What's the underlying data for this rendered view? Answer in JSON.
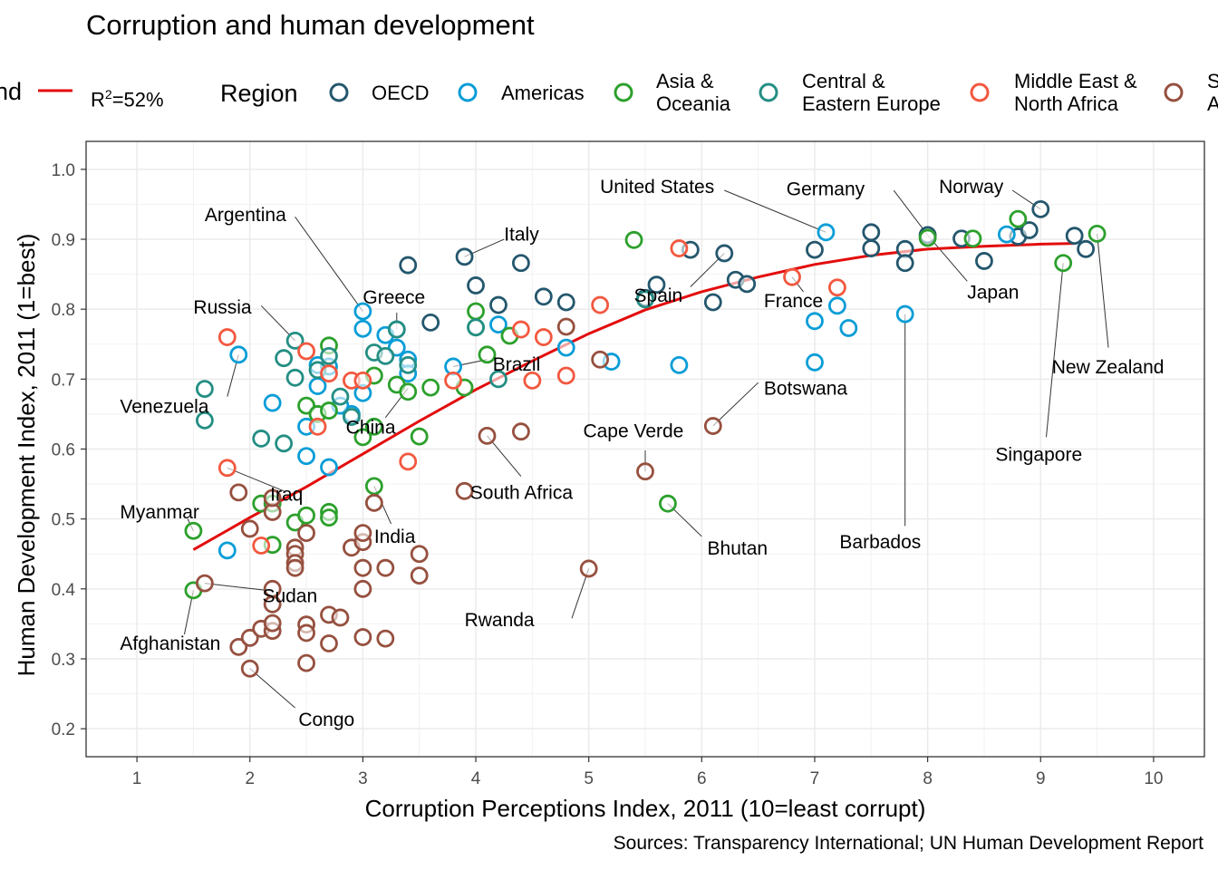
{
  "chart_data": {
    "type": "scatter",
    "title": "Corruption and human development",
    "xlabel": "Corruption Perceptions Index, 2011 (10=least corrupt)",
    "ylabel": "Human Development Index, 2011 (1=best)",
    "caption": "Sources: Transparency International; UN Human Development Report",
    "xlim": [
      0.55,
      10.45
    ],
    "ylim": [
      0.16,
      1.04
    ],
    "xticks": [
      "1",
      "2",
      "3",
      "4",
      "5",
      "6",
      "7",
      "8",
      "9",
      "10"
    ],
    "yticks": [
      "0.2",
      "0.3",
      "0.4",
      "0.5",
      "0.6",
      "0.7",
      "0.8",
      "0.9",
      "1.0"
    ],
    "grid": true,
    "legend_position": "top",
    "legend": {
      "fit_title": "nd",
      "fit_label": "R",
      "fit_sup": "2",
      "fit_suffix": "=52%",
      "region_title": "Region"
    },
    "regions": [
      {
        "key": "oecd",
        "line1": "OECD",
        "line2": "",
        "color": "#24576D"
      },
      {
        "key": "americas",
        "line1": "Americas",
        "line2": "",
        "color": "#099DD7"
      },
      {
        "key": "asia",
        "line1": "Asia &",
        "line2": "Oceania",
        "color": "#28AADC"
      },
      {
        "key": "cee",
        "line1": "Central &",
        "line2": "Eastern Europe",
        "color": "#248E84"
      },
      {
        "key": "mena",
        "line1": "Middle East &",
        "line2": "North Africa",
        "color": "#F2583F"
      },
      {
        "key": "ssa",
        "line1": "S",
        "line2": "A",
        "color": "#96503F"
      }
    ],
    "colors": {
      "oecd": "#24576D",
      "americas": "#099DD7",
      "asia": "#2CA02C",
      "cee": "#248E84",
      "mena": "#F2583F",
      "ssa": "#96503F",
      "trend": "#E30D0D"
    },
    "trend": {
      "label": "R²=52%",
      "x": [
        1.5,
        2,
        2.5,
        3,
        3.5,
        4,
        4.5,
        5,
        5.5,
        6,
        6.5,
        7,
        7.5,
        8,
        8.5,
        9,
        9.3
      ],
      "y": [
        0.456,
        0.502,
        0.546,
        0.593,
        0.64,
        0.685,
        0.726,
        0.765,
        0.799,
        0.825,
        0.846,
        0.864,
        0.877,
        0.886,
        0.89,
        0.893,
        0.894
      ]
    },
    "series": [
      {
        "name": "OECD",
        "region": "oecd",
        "points": [
          [
            3.4,
            0.863
          ],
          [
            3.9,
            0.875
          ],
          [
            4.4,
            0.866
          ],
          [
            4.0,
            0.834
          ],
          [
            4.2,
            0.806
          ],
          [
            4.6,
            0.818
          ],
          [
            4.8,
            0.81
          ],
          [
            3.3,
            0.771
          ],
          [
            3.6,
            0.781
          ],
          [
            5.5,
            0.816
          ],
          [
            5.6,
            0.835
          ],
          [
            5.9,
            0.885
          ],
          [
            6.2,
            0.88
          ],
          [
            6.1,
            0.81
          ],
          [
            6.3,
            0.842
          ],
          [
            6.4,
            0.836
          ],
          [
            7.0,
            0.885
          ],
          [
            7.5,
            0.91
          ],
          [
            7.5,
            0.887
          ],
          [
            7.8,
            0.886
          ],
          [
            7.8,
            0.866
          ],
          [
            8.0,
            0.906
          ],
          [
            8.3,
            0.901
          ],
          [
            8.5,
            0.869
          ],
          [
            8.8,
            0.904
          ],
          [
            8.9,
            0.913
          ],
          [
            9.0,
            0.943
          ],
          [
            9.3,
            0.905
          ],
          [
            9.4,
            0.886
          ]
        ]
      },
      {
        "name": "Americas",
        "region": "americas",
        "points": [
          [
            1.9,
            0.735
          ],
          [
            1.8,
            0.455
          ],
          [
            2.2,
            0.666
          ],
          [
            2.5,
            0.632
          ],
          [
            2.6,
            0.72
          ],
          [
            2.6,
            0.69
          ],
          [
            2.7,
            0.718
          ],
          [
            2.7,
            0.574
          ],
          [
            2.5,
            0.59
          ],
          [
            2.9,
            0.65
          ],
          [
            3.0,
            0.797
          ],
          [
            3.0,
            0.772
          ],
          [
            3.0,
            0.68
          ],
          [
            3.2,
            0.763
          ],
          [
            3.3,
            0.745
          ],
          [
            3.4,
            0.728
          ],
          [
            3.4,
            0.708
          ],
          [
            2.8,
            0.662
          ],
          [
            3.8,
            0.718
          ],
          [
            4.2,
            0.778
          ],
          [
            4.8,
            0.745
          ],
          [
            5.2,
            0.725
          ],
          [
            5.8,
            0.72
          ],
          [
            7.0,
            0.783
          ],
          [
            7.2,
            0.805
          ],
          [
            7.0,
            0.724
          ],
          [
            7.3,
            0.773
          ],
          [
            7.8,
            0.793
          ],
          [
            7.1,
            0.91
          ],
          [
            8.7,
            0.907
          ]
        ]
      },
      {
        "name": "Asia & Oceania",
        "region": "asia",
        "points": [
          [
            1.5,
            0.483
          ],
          [
            1.5,
            0.398
          ],
          [
            2.1,
            0.522
          ],
          [
            2.2,
            0.522
          ],
          [
            2.2,
            0.463
          ],
          [
            2.4,
            0.495
          ],
          [
            2.5,
            0.505
          ],
          [
            2.7,
            0.51
          ],
          [
            2.7,
            0.502
          ],
          [
            2.7,
            0.748
          ],
          [
            2.5,
            0.662
          ],
          [
            2.6,
            0.65
          ],
          [
            2.7,
            0.655
          ],
          [
            3.0,
            0.617
          ],
          [
            3.1,
            0.632
          ],
          [
            3.1,
            0.547
          ],
          [
            3.1,
            0.705
          ],
          [
            3.3,
            0.692
          ],
          [
            3.4,
            0.682
          ],
          [
            3.5,
            0.618
          ],
          [
            3.6,
            0.688
          ],
          [
            3.9,
            0.688
          ],
          [
            4.0,
            0.797
          ],
          [
            4.0,
            0.774
          ],
          [
            4.3,
            0.762
          ],
          [
            4.1,
            0.735
          ],
          [
            5.4,
            0.899
          ],
          [
            5.7,
            0.522
          ],
          [
            8.0,
            0.902
          ],
          [
            8.4,
            0.901
          ],
          [
            8.8,
            0.929
          ],
          [
            9.2,
            0.866
          ],
          [
            9.5,
            0.908
          ]
        ]
      },
      {
        "name": "Central & Eastern Europe",
        "region": "cee",
        "points": [
          [
            1.6,
            0.686
          ],
          [
            1.6,
            0.641
          ],
          [
            2.1,
            0.615
          ],
          [
            2.3,
            0.608
          ],
          [
            2.3,
            0.73
          ],
          [
            2.4,
            0.755
          ],
          [
            2.4,
            0.702
          ],
          [
            2.6,
            0.713
          ],
          [
            2.7,
            0.733
          ],
          [
            2.8,
            0.675
          ],
          [
            2.9,
            0.646
          ],
          [
            3.1,
            0.738
          ],
          [
            3.2,
            0.733
          ],
          [
            3.3,
            0.771
          ],
          [
            3.4,
            0.72
          ],
          [
            4.0,
            0.774
          ],
          [
            4.2,
            0.7
          ],
          [
            5.5,
            0.814
          ]
        ]
      },
      {
        "name": "Middle East & North Africa",
        "region": "mena",
        "points": [
          [
            1.8,
            0.573
          ],
          [
            1.8,
            0.76
          ],
          [
            2.1,
            0.462
          ],
          [
            2.5,
            0.74
          ],
          [
            2.6,
            0.632
          ],
          [
            2.7,
            0.708
          ],
          [
            2.9,
            0.698
          ],
          [
            3.0,
            0.698
          ],
          [
            3.4,
            0.582
          ],
          [
            3.8,
            0.698
          ],
          [
            4.4,
            0.771
          ],
          [
            4.5,
            0.698
          ],
          [
            4.6,
            0.76
          ],
          [
            4.8,
            0.705
          ],
          [
            5.1,
            0.806
          ],
          [
            6.8,
            0.846
          ],
          [
            7.2,
            0.831
          ],
          [
            5.8,
            0.887
          ]
        ]
      },
      {
        "name": "Sub-Saharan Africa",
        "region": "ssa",
        "points": [
          [
            1.6,
            0.408
          ],
          [
            1.9,
            0.317
          ],
          [
            1.9,
            0.538
          ],
          [
            2.0,
            0.486
          ],
          [
            2.0,
            0.33
          ],
          [
            2.0,
            0.286
          ],
          [
            2.1,
            0.343
          ],
          [
            2.2,
            0.34
          ],
          [
            2.2,
            0.351
          ],
          [
            2.2,
            0.378
          ],
          [
            2.2,
            0.4
          ],
          [
            2.2,
            0.51
          ],
          [
            2.2,
            0.53
          ],
          [
            2.4,
            0.459
          ],
          [
            2.4,
            0.45
          ],
          [
            2.4,
            0.437
          ],
          [
            2.4,
            0.43
          ],
          [
            2.5,
            0.349
          ],
          [
            2.5,
            0.337
          ],
          [
            2.5,
            0.294
          ],
          [
            2.5,
            0.48
          ],
          [
            2.7,
            0.363
          ],
          [
            2.7,
            0.322
          ],
          [
            2.8,
            0.359
          ],
          [
            2.9,
            0.459
          ],
          [
            3.0,
            0.467
          ],
          [
            3.0,
            0.48
          ],
          [
            3.0,
            0.43
          ],
          [
            3.0,
            0.4
          ],
          [
            3.0,
            0.331
          ],
          [
            3.1,
            0.523
          ],
          [
            3.2,
            0.329
          ],
          [
            3.2,
            0.43
          ],
          [
            3.5,
            0.45
          ],
          [
            3.5,
            0.419
          ],
          [
            3.9,
            0.54
          ],
          [
            4.1,
            0.619
          ],
          [
            4.4,
            0.625
          ],
          [
            4.8,
            0.775
          ],
          [
            5.1,
            0.728
          ],
          [
            5.0,
            0.429
          ],
          [
            5.5,
            0.568
          ],
          [
            6.1,
            0.633
          ]
        ]
      }
    ],
    "annotations": [
      {
        "text": "Argentina",
        "x": 3.0,
        "y": 0.797,
        "tx": 1.6,
        "ty": 0.935,
        "anchor": "start",
        "lx": 2.4,
        "ly": 0.932
      },
      {
        "text": "Italy",
        "x": 3.9,
        "y": 0.875,
        "tx": 4.25,
        "ty": 0.907,
        "anchor": "start",
        "lx": 4.25,
        "ly": 0.9
      },
      {
        "text": "Greece",
        "x": 3.3,
        "y": 0.771,
        "tx": 3.0,
        "ty": 0.817,
        "anchor": "start",
        "lx": 3.3,
        "ly": 0.795
      },
      {
        "text": "Russia",
        "x": 2.4,
        "y": 0.755,
        "tx": 1.5,
        "ty": 0.803,
        "anchor": "start",
        "lx": 2.1,
        "ly": 0.805
      },
      {
        "text": "Venezuela",
        "x": 1.9,
        "y": 0.735,
        "tx": 0.85,
        "ty": 0.661,
        "anchor": "start",
        "lx": 1.8,
        "ly": 0.675
      },
      {
        "text": "United States",
        "x": 7.1,
        "y": 0.91,
        "tx": 5.1,
        "ty": 0.975,
        "anchor": "start",
        "lx": 6.2,
        "ly": 0.97
      },
      {
        "text": "Germany",
        "x": 8.0,
        "y": 0.906,
        "tx": 6.75,
        "ty": 0.972,
        "anchor": "start",
        "lx": 7.7,
        "ly": 0.97
      },
      {
        "text": "Norway",
        "x": 9.0,
        "y": 0.943,
        "tx": 8.1,
        "ty": 0.975,
        "anchor": "start",
        "lx": 8.75,
        "ly": 0.97
      },
      {
        "text": "Japan",
        "x": 8.0,
        "y": 0.906,
        "tx": 8.35,
        "ty": 0.824,
        "anchor": "start",
        "lx": 8.35,
        "ly": 0.84
      },
      {
        "text": "Spain",
        "x": 6.2,
        "y": 0.88,
        "tx": 5.4,
        "ty": 0.82,
        "anchor": "start",
        "lx": 5.9,
        "ly": 0.832
      },
      {
        "text": "France",
        "x": 6.8,
        "y": 0.846,
        "tx": 6.55,
        "ty": 0.812,
        "anchor": "start",
        "lx": 6.9,
        "ly": 0.825
      },
      {
        "text": "Brazil",
        "x": 3.8,
        "y": 0.718,
        "tx": 4.15,
        "ty": 0.721,
        "anchor": "start",
        "lx": 4.1,
        "ly": 0.728
      },
      {
        "text": "Botswana",
        "x": 6.1,
        "y": 0.633,
        "tx": 6.55,
        "ty": 0.687,
        "anchor": "start",
        "lx": 6.5,
        "ly": 0.695
      },
      {
        "text": "New Zealand",
        "x": 9.5,
        "y": 0.908,
        "tx": 9.1,
        "ty": 0.717,
        "anchor": "start",
        "lx": 9.6,
        "ly": 0.745
      },
      {
        "text": "China",
        "x": 3.4,
        "y": 0.687,
        "tx": 2.85,
        "ty": 0.631,
        "anchor": "start",
        "lx": 3.2,
        "ly": 0.645
      },
      {
        "text": "Cape Verde",
        "x": 5.5,
        "y": 0.568,
        "tx": 4.95,
        "ty": 0.626,
        "anchor": "start",
        "lx": 5.5,
        "ly": 0.598
      },
      {
        "text": "Singapore",
        "x": 9.2,
        "y": 0.866,
        "tx": 8.6,
        "ty": 0.592,
        "anchor": "start",
        "lx": 9.05,
        "ly": 0.617
      },
      {
        "text": "Iraq",
        "x": 1.8,
        "y": 0.573,
        "tx": 2.18,
        "ty": 0.535,
        "anchor": "start",
        "lx": 2.3,
        "ly": 0.54
      },
      {
        "text": "South Africa",
        "x": 4.1,
        "y": 0.619,
        "tx": 3.95,
        "ty": 0.538,
        "anchor": "start",
        "lx": 4.4,
        "ly": 0.561
      },
      {
        "text": "Myanmar",
        "x": 1.5,
        "y": 0.483,
        "tx": 0.85,
        "ty": 0.51,
        "anchor": "start",
        "lx": 1.45,
        "ly": 0.5
      },
      {
        "text": "India",
        "x": 3.1,
        "y": 0.547,
        "tx": 3.1,
        "ty": 0.475,
        "anchor": "start",
        "lx": 3.25,
        "ly": 0.493
      },
      {
        "text": "Bhutan",
        "x": 5.7,
        "y": 0.522,
        "tx": 6.05,
        "ty": 0.458,
        "anchor": "start",
        "lx": 6.0,
        "ly": 0.475
      },
      {
        "text": "Barbados",
        "x": 7.8,
        "y": 0.793,
        "tx": 7.22,
        "ty": 0.467,
        "anchor": "start",
        "lx": 7.8,
        "ly": 0.49
      },
      {
        "text": "Sudan",
        "x": 1.6,
        "y": 0.408,
        "tx": 2.11,
        "ty": 0.39,
        "anchor": "start",
        "lx": 2.2,
        "ly": 0.397
      },
      {
        "text": "Rwanda",
        "x": 5.0,
        "y": 0.429,
        "tx": 3.9,
        "ty": 0.356,
        "anchor": "start",
        "lx": 4.85,
        "ly": 0.358
      },
      {
        "text": "Afghanistan",
        "x": 1.5,
        "y": 0.398,
        "tx": 0.85,
        "ty": 0.322,
        "anchor": "start",
        "lx": 1.42,
        "ly": 0.335
      },
      {
        "text": "Congo",
        "x": 2.0,
        "y": 0.286,
        "tx": 2.43,
        "ty": 0.213,
        "anchor": "start",
        "lx": 2.4,
        "ly": 0.23
      }
    ]
  }
}
